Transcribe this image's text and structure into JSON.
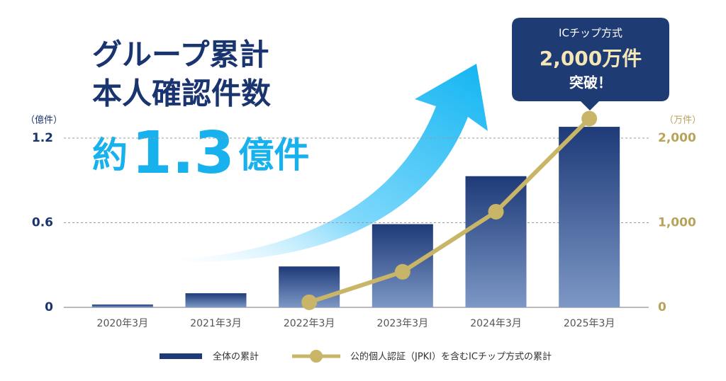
{
  "chart_data": {
    "type": "bar",
    "headline": [
      "グループ累計",
      "本人確認件数"
    ],
    "highlight": {
      "prefix": "約",
      "number": "1.3",
      "suffix": "億件"
    },
    "callout": [
      "ICチップ方式",
      "2,000万件",
      "突破！"
    ],
    "y_unit": "（億件）",
    "y2_unit": "（万件）",
    "categories": [
      "2020年3月",
      "2021年3月",
      "2022年3月",
      "2023年3月",
      "2024年3月",
      "2025年3月"
    ],
    "series": [
      {
        "name": "全体の累計",
        "type": "bar",
        "color": "#1e3a78",
        "values": [
          0.02,
          0.1,
          0.29,
          0.59,
          0.93,
          1.28
        ]
      },
      {
        "name": "公的個人認証（JPKI）を含むICチップ方式の累計",
        "type": "line",
        "axis": "y2",
        "color": "#c8b567",
        "values": [
          null,
          null,
          60,
          420,
          1130,
          2230
        ]
      }
    ],
    "ylim": [
      0,
      1.2
    ],
    "yticks": [
      0,
      0.6,
      1.2
    ],
    "y2lim": [
      0,
      2000
    ],
    "y2ticks": [
      0,
      {
        "value": 1000,
        "label": "1,000"
      },
      {
        "value": 2000,
        "label": "2,000"
      }
    ],
    "grid": true
  }
}
